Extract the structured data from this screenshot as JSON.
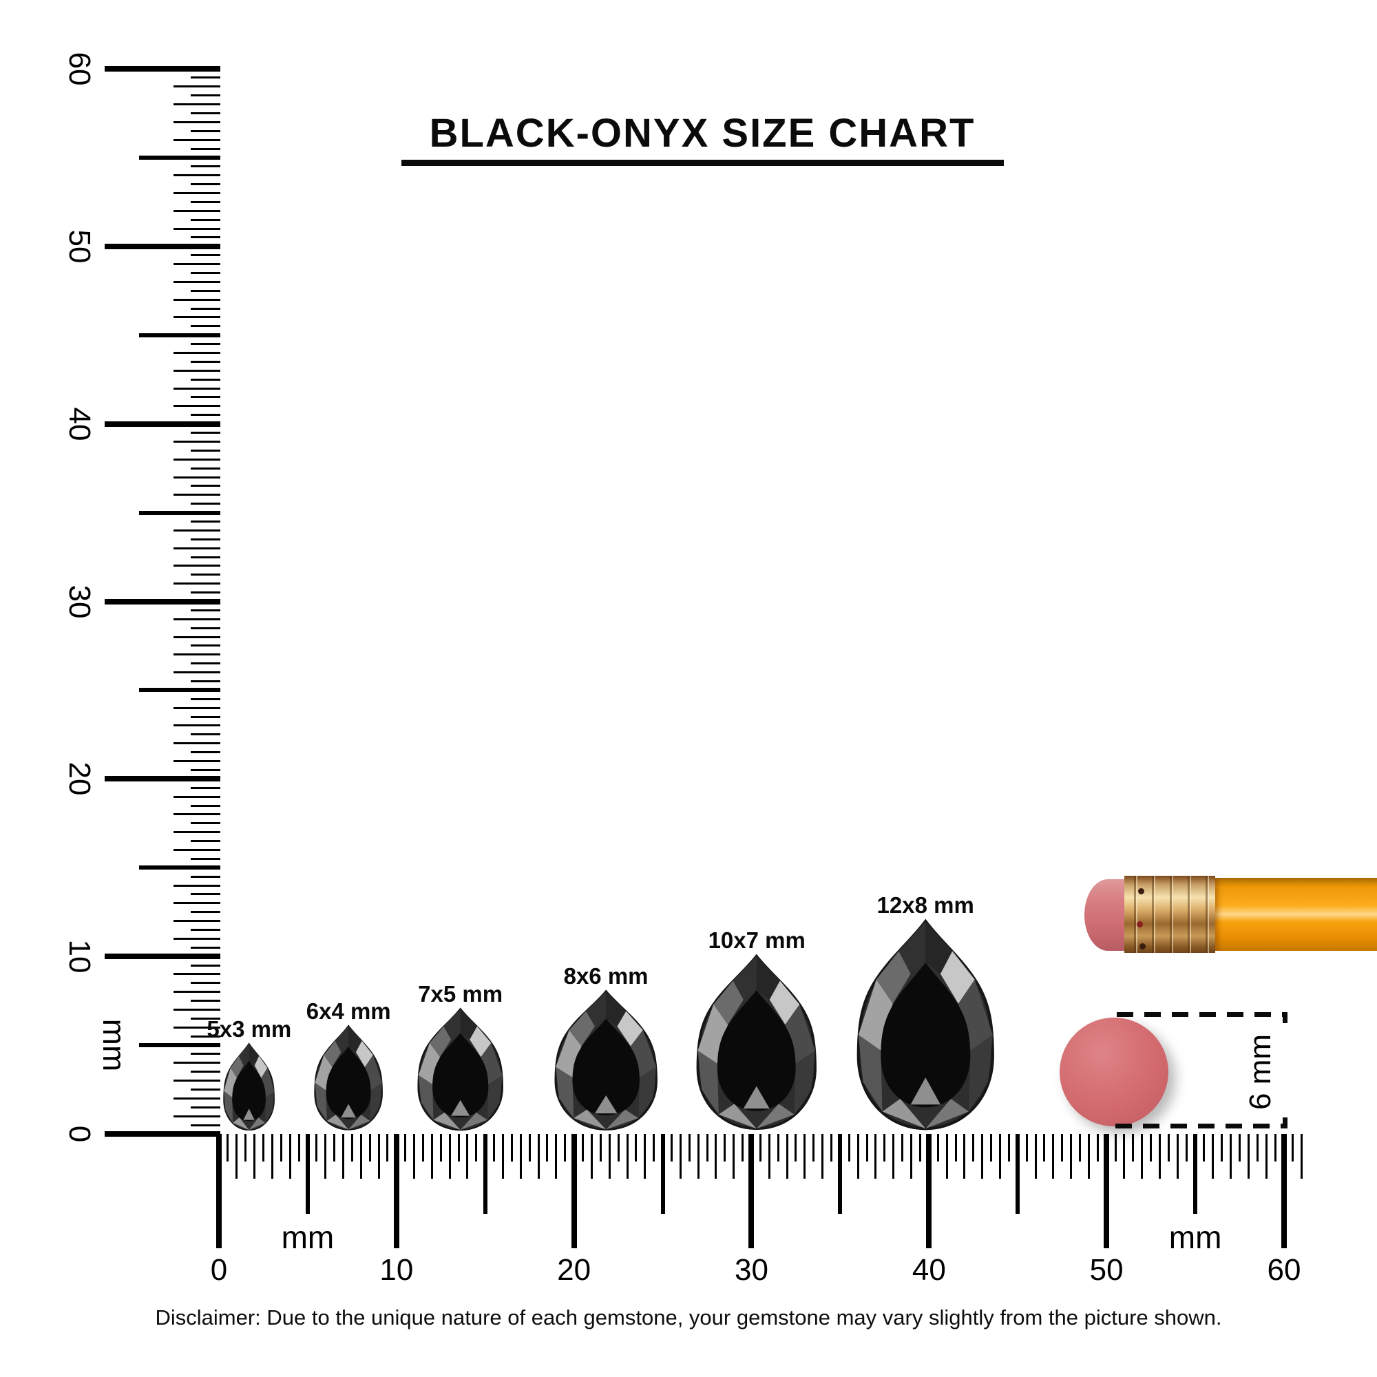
{
  "title": {
    "text": "BLACK-ONYX SIZE CHART"
  },
  "rulers": {
    "unit": "mm",
    "major_labels": [
      "0",
      "10",
      "20",
      "30",
      "40",
      "50",
      "60"
    ],
    "range_mm": [
      0,
      60
    ],
    "tick_step_mm": 0.5,
    "horizontal_unit_label_positions_mm": [
      5,
      55
    ],
    "vertical_unit_label_position_mm": 5
  },
  "chart_data": {
    "type": "scatter",
    "title": "BLACK-ONYX SIZE CHART",
    "xlabel": "mm",
    "ylabel": "mm",
    "xlim": [
      0,
      60
    ],
    "ylim": [
      0,
      60
    ],
    "series": [
      {
        "name": "pear-cut black onyx sizes",
        "points": [
          {
            "label": "5x3 mm",
            "width_mm": 3,
            "height_mm": 5,
            "center_x_mm": 1.7
          },
          {
            "label": "6x4 mm",
            "width_mm": 4,
            "height_mm": 6,
            "center_x_mm": 7.3
          },
          {
            "label": "7x5 mm",
            "width_mm": 5,
            "height_mm": 7,
            "center_x_mm": 13.6
          },
          {
            "label": "8x6 mm",
            "width_mm": 6,
            "height_mm": 8,
            "center_x_mm": 21.8
          },
          {
            "label": "10x7 mm",
            "width_mm": 7,
            "height_mm": 10,
            "center_x_mm": 30.3
          },
          {
            "label": "12x8 mm",
            "width_mm": 8,
            "height_mm": 12,
            "center_x_mm": 39.8
          }
        ]
      },
      {
        "name": "pencil-eraser-end",
        "points": [
          {
            "label": "6 mm",
            "diameter_mm": 6,
            "center_x_mm": 50.4
          }
        ]
      }
    ]
  },
  "gems": [
    {
      "label": "5x3 mm",
      "width_mm": 3,
      "height_mm": 5,
      "center_mm": 1.7
    },
    {
      "label": "6x4 mm",
      "width_mm": 4,
      "height_mm": 6,
      "center_mm": 7.3
    },
    {
      "label": "7x5 mm",
      "width_mm": 5,
      "height_mm": 7,
      "center_mm": 13.6
    },
    {
      "label": "8x6 mm",
      "width_mm": 6,
      "height_mm": 8,
      "center_mm": 21.8
    },
    {
      "label": "10x7 mm",
      "width_mm": 7,
      "height_mm": 10,
      "center_mm": 30.3
    },
    {
      "label": "12x8 mm",
      "width_mm": 8,
      "height_mm": 12,
      "center_mm": 39.8
    }
  ],
  "eraser_measure": {
    "label": "6 mm"
  },
  "disclaimer": {
    "text": "Disclaimer: Due to the unique nature of each gemstone, your gemstone may vary slightly from the picture shown."
  },
  "colors": {
    "ink": "#000000",
    "eraser_pink": "#d67e81",
    "circle_pink": "#d26a6e",
    "ferrule_gold": "#dcae6b",
    "pencil_orange": "#f9a310",
    "gem_black": "#0a0a0a"
  }
}
